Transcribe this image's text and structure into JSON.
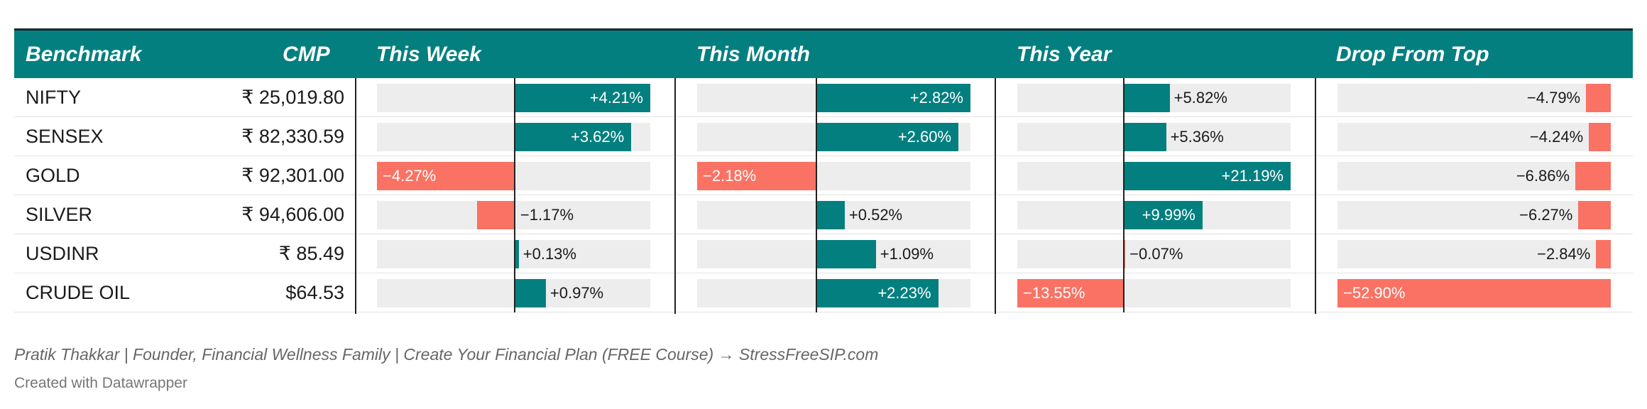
{
  "columns": {
    "benchmark": "Benchmark",
    "cmp": "CMP",
    "this_week": "This Week",
    "this_month": "This Month",
    "this_year": "This Year",
    "drop_from_top": "Drop From Top"
  },
  "colors": {
    "header": "#047f7f",
    "positive": "#047f7f",
    "negative": "#fa7264",
    "track": "#ededed"
  },
  "chart_data": {
    "type": "table",
    "rows": [
      {
        "benchmark": "NIFTY",
        "cmp": "₹ 25,019.80",
        "this_week": 4.21,
        "this_month": 2.82,
        "this_year": 5.82,
        "drop_from_top": -4.79
      },
      {
        "benchmark": "SENSEX",
        "cmp": "₹ 82,330.59",
        "this_week": 3.62,
        "this_month": 2.6,
        "this_year": 5.36,
        "drop_from_top": -4.24
      },
      {
        "benchmark": "GOLD",
        "cmp": "₹ 92,301.00",
        "this_week": -4.27,
        "this_month": -2.18,
        "this_year": 21.19,
        "drop_from_top": -6.86
      },
      {
        "benchmark": "SILVER",
        "cmp": "₹ 94,606.00",
        "this_week": -1.17,
        "this_month": 0.52,
        "this_year": 9.99,
        "drop_from_top": -6.27
      },
      {
        "benchmark": "USDINR",
        "cmp": "₹ 85.49",
        "this_week": 0.13,
        "this_month": 1.09,
        "this_year": -0.07,
        "drop_from_top": -2.84
      },
      {
        "benchmark": "CRUDE OIL",
        "cmp": "$64.53",
        "this_week": 0.97,
        "this_month": 2.23,
        "this_year": -13.55,
        "drop_from_top": -52.9
      }
    ],
    "ranges": {
      "this_week": [
        -4.27,
        4.21
      ],
      "this_month": [
        -2.18,
        2.82
      ],
      "this_year": [
        -13.55,
        21.19
      ],
      "drop_from_top": [
        -52.9,
        0
      ]
    }
  },
  "notes": "Pratik Thakkar | Founder, Financial Wellness Family | Create Your Financial Plan (FREE Course) → StressFreeSIP.com",
  "credit": "Created with Datawrapper"
}
